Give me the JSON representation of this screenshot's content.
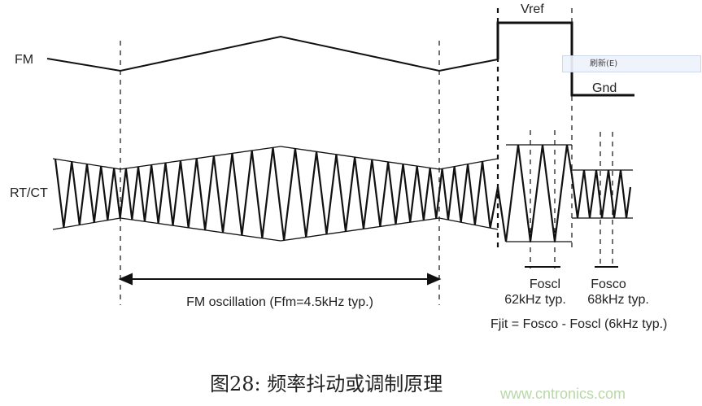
{
  "signals": {
    "fm": "FM",
    "rtct": "RT/CT",
    "vref": "Vref",
    "gnd": "Gnd"
  },
  "annotations": {
    "fm_oscillation": "FM oscillation (Ffm=4.5kHz typ.)",
    "foscl_name": "Foscl",
    "foscl_value": "62kHz typ.",
    "fosco_name": "Fosco",
    "fosco_value": "68kHz typ.",
    "fjit": "Fjit = Fosco - Foscl (6kHz typ.)"
  },
  "caption": "图28: 频率抖动或调制原理",
  "watermark": "www.cntronics.com",
  "context_menu": {
    "items": [
      {
        "label": "刷新(E)"
      }
    ]
  }
}
